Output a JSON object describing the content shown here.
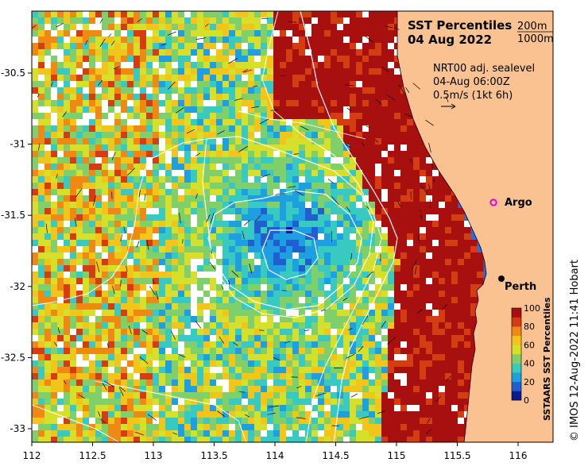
{
  "title": {
    "line1": "SST Percentiles",
    "line2": "04 Aug 2022"
  },
  "depth_legend": {
    "contour1": "200m",
    "contour2": "1000m"
  },
  "currents_legend": {
    "product": "NRT00 adj. sealevel",
    "time": "04-Aug 06:00Z",
    "scale": "0.5m/s (1kt 6h)"
  },
  "places": {
    "argo": "Argo",
    "perth": "Perth"
  },
  "x_axis": {
    "ticks": [
      "112",
      "112.5",
      "113",
      "113.5",
      "114",
      "114.5",
      "115",
      "115.5",
      "116"
    ]
  },
  "y_axis": {
    "ticks": [
      "-30.5",
      "-31",
      "-31.5",
      "-32",
      "-32.5",
      "-33"
    ]
  },
  "colorbar": {
    "title": "SSTAARS SST Percentiles",
    "ticks": [
      "0",
      "20",
      "40",
      "60",
      "80",
      "100"
    ],
    "colors": [
      "#0b1b8f",
      "#1f5fd1",
      "#1e9fe0",
      "#38c9c0",
      "#7fd06a",
      "#d6e02a",
      "#f2c51b",
      "#ee8a14",
      "#d43d12",
      "#a80f0f"
    ]
  },
  "credit": "© IMOS 12-Aug-2022 11:41 Hobart",
  "colors": {
    "land": "#f9c290",
    "argo_marker": "#e000e0",
    "perth_marker": "#000000"
  }
}
